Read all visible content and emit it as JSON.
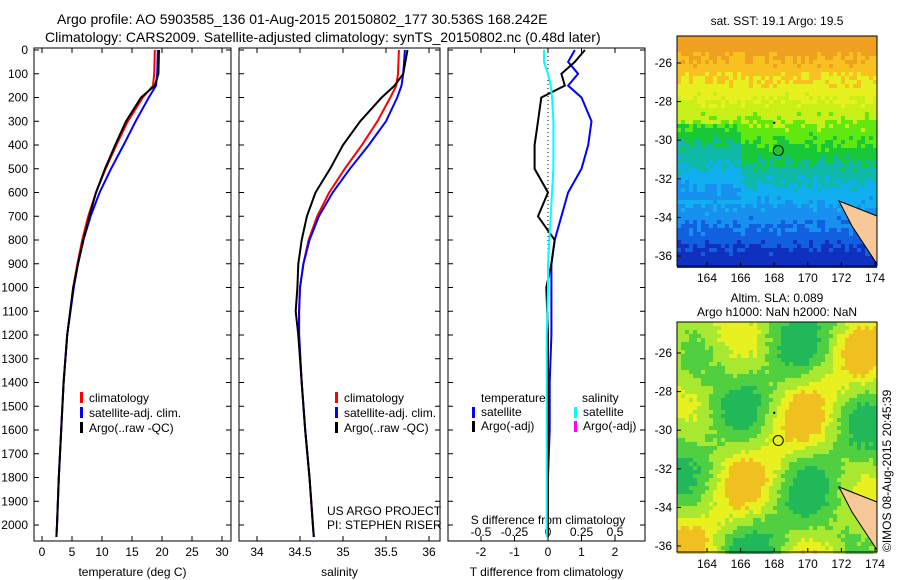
{
  "title": {
    "line1": "Argo profile: AO 5903585_136 01-Aug-2015 20150802_177 30.536S 168.242E",
    "line2": "Climatology: CARS2009. Satellite-adjusted climatology: synTS_20150802.nc (0.48d later)"
  },
  "copyright": "©IMOS 08-Aug-2015 20:45:39",
  "colors": {
    "climatology": "#ff0000",
    "satellite": "#0000ff",
    "argo": "#000000",
    "sal_satellite": "#00ffff",
    "sal_argo": "#ff00ff"
  },
  "chart_data": [
    {
      "type": "line",
      "xlabel": "temperature (deg C)",
      "ylabel": "",
      "xlim": [
        -2,
        32
      ],
      "ylim": [
        2050,
        0
      ],
      "xticks": [
        "0",
        "5",
        "10",
        "15",
        "20",
        "25",
        "30"
      ],
      "xtickvals": [
        0,
        5,
        10,
        15,
        20,
        25,
        30
      ],
      "yticks": [
        "0",
        "100",
        "200",
        "300",
        "400",
        "500",
        "600",
        "700",
        "800",
        "900",
        "1000",
        "1100",
        "1200",
        "1300",
        "1400",
        "1500",
        "1600",
        "1700",
        "1800",
        "1900",
        "2000"
      ],
      "depth": [
        0,
        100,
        150,
        200,
        300,
        400,
        500,
        600,
        700,
        800,
        900,
        1000,
        1200,
        1400,
        1600,
        1800,
        2000,
        2050
      ],
      "series": [
        {
          "name": "climatology",
          "color": "#ff0000",
          "values": [
            18.8,
            18.7,
            18.5,
            16.8,
            14.3,
            12.4,
            10.6,
            9.0,
            7.7,
            6.7,
            5.9,
            5.2,
            4.2,
            3.6,
            3.2,
            2.8,
            2.5,
            2.4
          ]
        },
        {
          "name": "satellite-adj. clim.",
          "color": "#0000ff",
          "values": [
            19.3,
            19.2,
            19.0,
            17.8,
            15.6,
            13.6,
            11.5,
            9.6,
            8.1,
            6.9,
            6.0,
            5.3,
            4.2,
            3.6,
            3.2,
            2.8,
            2.5,
            2.4
          ]
        },
        {
          "name": "Argo(..raw -QC)",
          "color": "#000000",
          "values": [
            19.5,
            19.4,
            18.8,
            16.5,
            14.0,
            12.2,
            10.5,
            9.0,
            7.9,
            6.9,
            6.0,
            5.2,
            4.2,
            3.6,
            3.2,
            2.8,
            2.5,
            2.4
          ]
        }
      ],
      "footer": []
    },
    {
      "type": "line",
      "xlabel": "salinity",
      "xlim": [
        33.8,
        36.1
      ],
      "ylim": [
        2050,
        0
      ],
      "xticks": [
        "34",
        "34.5",
        "35",
        "35.5",
        "36"
      ],
      "xtickvals": [
        34,
        34.5,
        35,
        35.5,
        36
      ],
      "depth": [
        0,
        100,
        150,
        200,
        300,
        400,
        500,
        600,
        700,
        800,
        900,
        1000,
        1100,
        1200,
        1400,
        1600,
        1800,
        2000,
        2050
      ],
      "series": [
        {
          "name": "climatology",
          "color": "#ff0000",
          "values": [
            35.65,
            35.64,
            35.62,
            35.55,
            35.4,
            35.22,
            35.02,
            34.84,
            34.7,
            34.6,
            34.54,
            34.5,
            34.49,
            34.49,
            34.52,
            34.56,
            34.61,
            34.65,
            34.66
          ]
        },
        {
          "name": "satellite-adj. clim.",
          "color": "#0000ff",
          "values": [
            35.72,
            35.7,
            35.68,
            35.63,
            35.5,
            35.3,
            35.08,
            34.88,
            34.72,
            34.61,
            34.54,
            34.5,
            34.49,
            34.49,
            34.52,
            34.56,
            34.61,
            34.65,
            34.66
          ]
        },
        {
          "name": "Argo(..raw -QC)",
          "color": "#000000",
          "values": [
            35.75,
            35.7,
            35.6,
            35.45,
            35.2,
            35.0,
            34.85,
            34.68,
            34.58,
            34.52,
            34.48,
            34.47,
            34.45,
            34.48,
            34.52,
            34.56,
            34.61,
            34.65,
            34.66
          ]
        }
      ],
      "footer": [
        "US ARGO PROJECT",
        "PI: STEPHEN RISER"
      ]
    },
    {
      "type": "line",
      "xlabel": "T difference from climatology",
      "xlabel2": "S difference from climatology",
      "xlim": [
        -3,
        3
      ],
      "ylim": [
        2050,
        0
      ],
      "xticks": [
        "-2",
        "-1",
        "0",
        "1",
        "2"
      ],
      "xtickvals": [
        -2,
        -1,
        0,
        1,
        2
      ],
      "s_xticks": [
        "-0.5",
        "-0.25",
        "0",
        "0.25",
        "0.5"
      ],
      "s_xtickvals": [
        -0.5,
        -0.25,
        0,
        0.25,
        0.5
      ],
      "depth": [
        0,
        50,
        100,
        150,
        200,
        300,
        400,
        500,
        600,
        700,
        800,
        900,
        1000,
        1200,
        1400,
        1600,
        1800,
        2000,
        2050
      ],
      "series": [
        {
          "name": "T satellite",
          "color": "#0000ff",
          "values": [
            0.8,
            0.6,
            0.9,
            0.6,
            1.0,
            1.3,
            1.2,
            1.0,
            0.6,
            0.4,
            0.2,
            0.1,
            0.1,
            0.1,
            0.05,
            0.05,
            0.0,
            0.0,
            0.0
          ]
        },
        {
          "name": "T Argo(-adj)",
          "color": "#000000",
          "values": [
            1.1,
            0.8,
            0.4,
            0.5,
            -0.2,
            -0.3,
            -0.4,
            -0.4,
            0.0,
            -0.3,
            0.2,
            0.1,
            -0.05,
            0.0,
            0.0,
            0.0,
            0.0,
            0.0,
            0.0
          ]
        },
        {
          "name": "S satellite",
          "color": "#00ffff",
          "scale": "S",
          "values": [
            -0.03,
            -0.03,
            0.0,
            0.02,
            0.03,
            0.04,
            0.04,
            0.04,
            0.03,
            0.02,
            0.01,
            0.0,
            0.0,
            -0.01,
            -0.01,
            -0.01,
            -0.01,
            -0.01,
            -0.01
          ]
        }
      ]
    }
  ],
  "legend1": [
    "climatology",
    "satellite-adj. clim.",
    "Argo(..raw -QC)"
  ],
  "legend3": {
    "temperature": "temperature",
    "salinity": "salinity",
    "t_sat": "satellite",
    "t_argo": "Argo(-adj)",
    "s_sat": "satellite",
    "s_argo": "Argo(-adj)"
  },
  "maps": [
    {
      "title": "sat. SST: 19.1 Argo: 19.5",
      "kind": "sst"
    },
    {
      "title": "Altim. SLA: 0.089",
      "title2": "Argo h1000: NaN h2000: NaN",
      "kind": "sla"
    }
  ],
  "map_axes": {
    "lon": [
      "164",
      "166",
      "168",
      "170",
      "172",
      "174"
    ],
    "lonvals": [
      164,
      166,
      168,
      170,
      172,
      174
    ],
    "lat": [
      "-26",
      "-28",
      "-30",
      "-32",
      "-34",
      "-36"
    ],
    "latvals": [
      -26,
      -28,
      -30,
      -32,
      -34,
      -36
    ]
  },
  "profile_position": {
    "lon": 168.242,
    "lat": -30.536
  }
}
